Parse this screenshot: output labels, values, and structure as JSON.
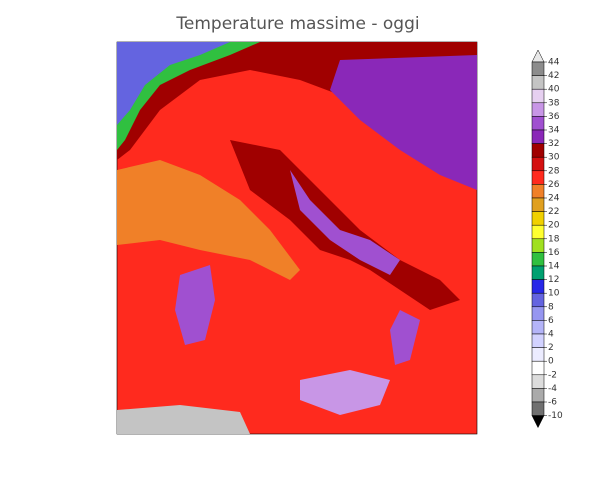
{
  "title": "Temperature massime - oggi",
  "colorbar": {
    "ticks": [
      44,
      42,
      40,
      38,
      36,
      34,
      32,
      30,
      28,
      26,
      24,
      22,
      20,
      18,
      16,
      14,
      12,
      10,
      8,
      6,
      4,
      2,
      0,
      -2,
      -4,
      -6,
      -10
    ],
    "colors": [
      "#e8e8e8",
      "#8c8c8c",
      "#c4c4c4",
      "#e6d0f0",
      "#c896e6",
      "#a050d0",
      "#8a28b8",
      "#a00000",
      "#d41010",
      "#ff2a1e",
      "#f08028",
      "#e0a020",
      "#f0d000",
      "#ffff30",
      "#a0e020",
      "#30c040",
      "#00a070",
      "#2828e8",
      "#6464e0",
      "#9696f0",
      "#b4b4f8",
      "#d2d2ff",
      "#ececff",
      "#ffffff",
      "#dcdcdc",
      "#aaaaaa",
      "#707070",
      "#000000"
    ]
  }
}
